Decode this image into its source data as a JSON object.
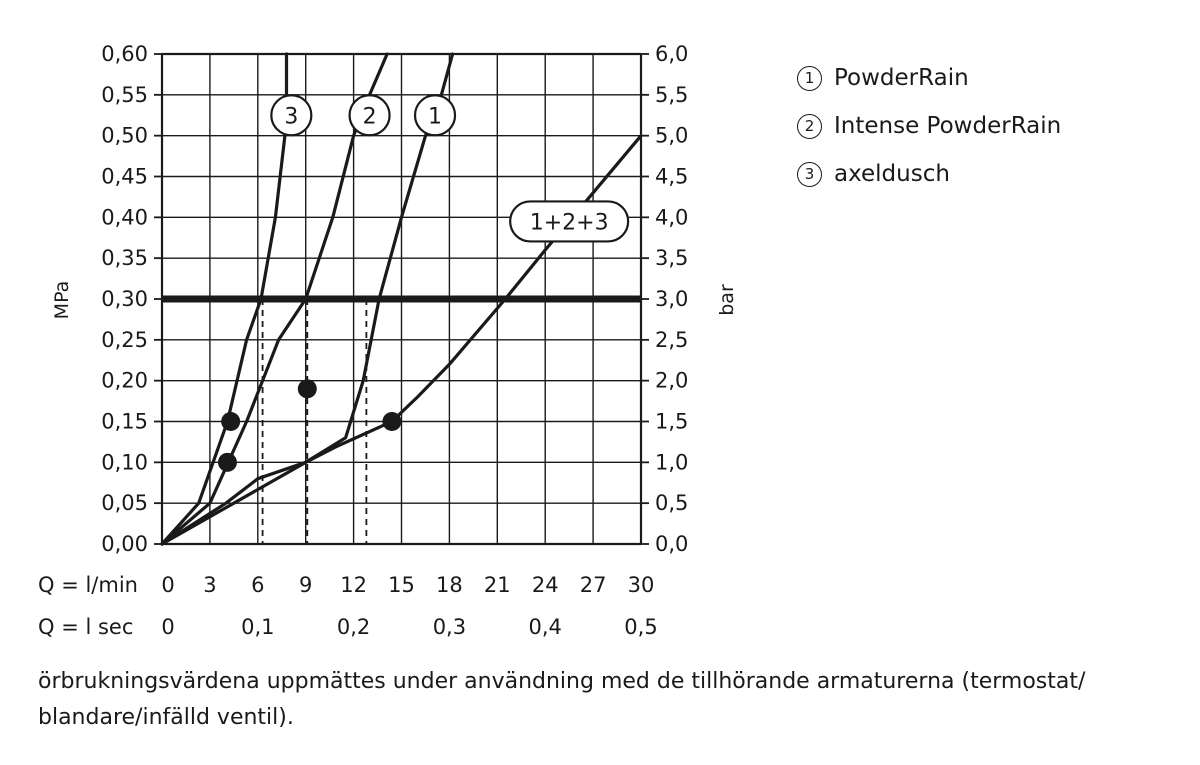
{
  "chart_data": {
    "type": "line",
    "ylabel_left": "MPa",
    "ylabel_right": "bar",
    "x_row1_label": "Q = l/min",
    "x_row2_label": "Q = l  sec",
    "x_ticks_lmin": [
      "0",
      "3",
      "6",
      "9",
      "12",
      "15",
      "18",
      "21",
      "24",
      "27",
      "30"
    ],
    "x_ticks_lsec": [
      "0",
      "0,1",
      "0,2",
      "0,3",
      "0,4",
      "0,5"
    ],
    "y_ticks_mpa": [
      "0,00",
      "0,05",
      "0,10",
      "0,15",
      "0,20",
      "0,25",
      "0,30",
      "0,35",
      "0,40",
      "0,45",
      "0,50",
      "0,55",
      "0,60"
    ],
    "y_ticks_bar": [
      "0,0",
      "0,5",
      "1,0",
      "1,5",
      "2,0",
      "2,5",
      "3,0",
      "3,5",
      "4,0",
      "4,5",
      "5,0",
      "5,5",
      "6,0"
    ],
    "xlim": [
      0,
      30
    ],
    "ylim": [
      0,
      0.6
    ],
    "grid": true,
    "reference_line_mpa": 0.3,
    "series": [
      {
        "name": "1",
        "x": [
          0,
          4.5,
          9,
          11.5,
          12.6,
          13.6,
          15,
          16.5,
          17.5,
          18.2
        ],
        "y": [
          0,
          0.05,
          0.1,
          0.13,
          0.2,
          0.3,
          0.4,
          0.5,
          0.55,
          0.6
        ]
      },
      {
        "name": "2",
        "x": [
          0,
          3,
          5.3,
          7.3,
          9,
          10.7,
          12,
          13,
          14.1
        ],
        "y": [
          0,
          0.05,
          0.15,
          0.25,
          0.3,
          0.4,
          0.5,
          0.55,
          0.6
        ]
      },
      {
        "name": "3",
        "x": [
          0,
          2.3,
          4.1,
          5.3,
          6.2,
          7.1,
          7.7,
          7.8,
          7.8
        ],
        "y": [
          0,
          0.05,
          0.15,
          0.25,
          0.3,
          0.4,
          0.5,
          0.55,
          0.6
        ]
      },
      {
        "name": "1+2+3",
        "x": [
          0,
          4,
          6,
          9,
          11,
          14.4,
          16,
          18,
          21.5,
          24,
          27,
          30
        ],
        "y": [
          0,
          0.05,
          0.08,
          0.1,
          0.12,
          0.15,
          0.18,
          0.22,
          0.3,
          0.36,
          0.43,
          0.5
        ]
      }
    ],
    "markers": [
      {
        "x": 4.3,
        "y": 0.15
      },
      {
        "x": 4.1,
        "y": 0.1
      },
      {
        "x": 9.1,
        "y": 0.19
      },
      {
        "x": 14.4,
        "y": 0.15
      }
    ],
    "drop_lines_x": [
      6.3,
      9.1,
      12.8
    ],
    "curve_labels": [
      {
        "text": "3",
        "x": 8.1,
        "y": 0.525
      },
      {
        "text": "2",
        "x": 13.0,
        "y": 0.525
      },
      {
        "text": "1",
        "x": 17.1,
        "y": 0.525
      },
      {
        "text": "1+2+3",
        "x": 25.5,
        "y": 0.395
      }
    ]
  },
  "legend": [
    {
      "num": "1",
      "label": "PowderRain"
    },
    {
      "num": "2",
      "label": "Intense PowderRain"
    },
    {
      "num": "3",
      "label": "axeldusch"
    }
  ],
  "footnote": "örbrukningsvärdena uppmättes under användning med de tillhörande armaturerna (termostat/ blandare/infälld ventil)."
}
